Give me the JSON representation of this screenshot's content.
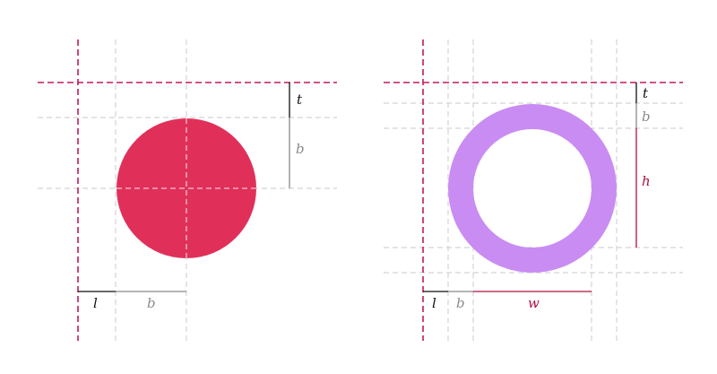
{
  "left_diagram": {
    "fill_color": "#e0305a",
    "labels": {
      "top": "t",
      "border": "b",
      "left": "l",
      "bottom_border": "b"
    }
  },
  "right_diagram": {
    "ring_color": "#c98cf2",
    "labels": {
      "top": "t",
      "border": "b",
      "height": "h",
      "left": "l",
      "left_border": "b",
      "width": "w"
    }
  },
  "colors": {
    "origin_guide": "#c2185b",
    "light_guide": "#d4d4d4",
    "dimension_accent": "#b0103f"
  }
}
